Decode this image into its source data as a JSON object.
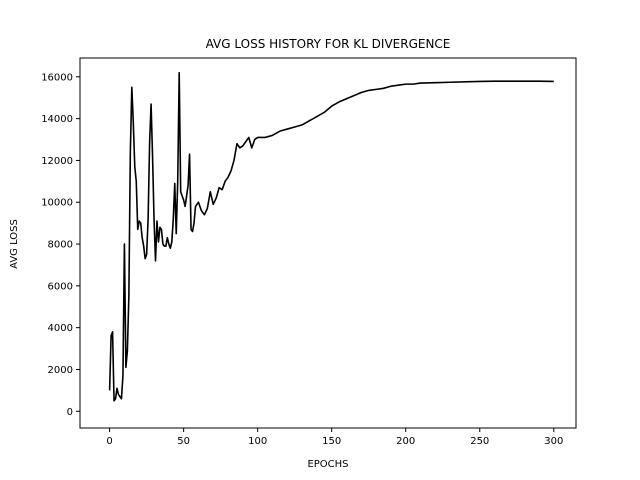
{
  "chart_data": {
    "type": "line",
    "title": "AVG LOSS HISTORY FOR KL DIVERGENCE",
    "xlabel": "EPOCHS",
    "ylabel": "AVG LOSS",
    "xlim": [
      -20,
      315
    ],
    "ylim": [
      -800,
      16900
    ],
    "x_ticks": [
      0,
      50,
      100,
      150,
      200,
      250,
      300
    ],
    "y_ticks": [
      0,
      2000,
      4000,
      6000,
      8000,
      10000,
      12000,
      14000,
      16000
    ],
    "grid": false,
    "line_color": "#000000",
    "series": [
      {
        "x": [
          0,
          1,
          2,
          3,
          4,
          5,
          6,
          7,
          8,
          9,
          10,
          11,
          12,
          13,
          14,
          15,
          16,
          17,
          18,
          19,
          20,
          21,
          22,
          23,
          24,
          25,
          26,
          27,
          28,
          29,
          30,
          31,
          32,
          33,
          34,
          35,
          36,
          37,
          38,
          39,
          40,
          41,
          42,
          43,
          44,
          45,
          46,
          47,
          48,
          49,
          50,
          51,
          52,
          53,
          54,
          55,
          56,
          57,
          58,
          60,
          62,
          64,
          66,
          68,
          70,
          72,
          74,
          76,
          78,
          80,
          82,
          84,
          86,
          88,
          90,
          92,
          94,
          96,
          98,
          100,
          105,
          110,
          115,
          120,
          125,
          130,
          135,
          140,
          145,
          150,
          155,
          160,
          165,
          170,
          175,
          180,
          185,
          190,
          195,
          200,
          205,
          210,
          220,
          230,
          240,
          250,
          260,
          270,
          280,
          290,
          300
        ],
        "values": [
          1000,
          3600,
          3800,
          500,
          600,
          1100,
          800,
          700,
          600,
          1700,
          8000,
          2100,
          2900,
          5500,
          12400,
          15500,
          13800,
          11700,
          11000,
          8700,
          9100,
          9000,
          8300,
          7900,
          7300,
          7500,
          9200,
          12800,
          14700,
          12200,
          9200,
          7200,
          9100,
          8100,
          8800,
          8700,
          8000,
          7900,
          7900,
          8300,
          8000,
          7800,
          8100,
          9200,
          10900,
          8500,
          11000,
          16200,
          10500,
          10300,
          10100,
          9800,
          10300,
          10800,
          12300,
          8700,
          8600,
          9000,
          9800,
          10000,
          9600,
          9400,
          9700,
          10500,
          9900,
          10200,
          10700,
          10600,
          11000,
          11200,
          11500,
          12000,
          12800,
          12600,
          12700,
          12900,
          13100,
          12600,
          13000,
          13100,
          13100,
          13200,
          13400,
          13500,
          13600,
          13700,
          13900,
          14100,
          14300,
          14600,
          14800,
          14950,
          15100,
          15250,
          15350,
          15400,
          15450,
          15550,
          15600,
          15650,
          15650,
          15700,
          15720,
          15740,
          15760,
          15780,
          15790,
          15790,
          15790,
          15790,
          15780
        ]
      }
    ]
  }
}
